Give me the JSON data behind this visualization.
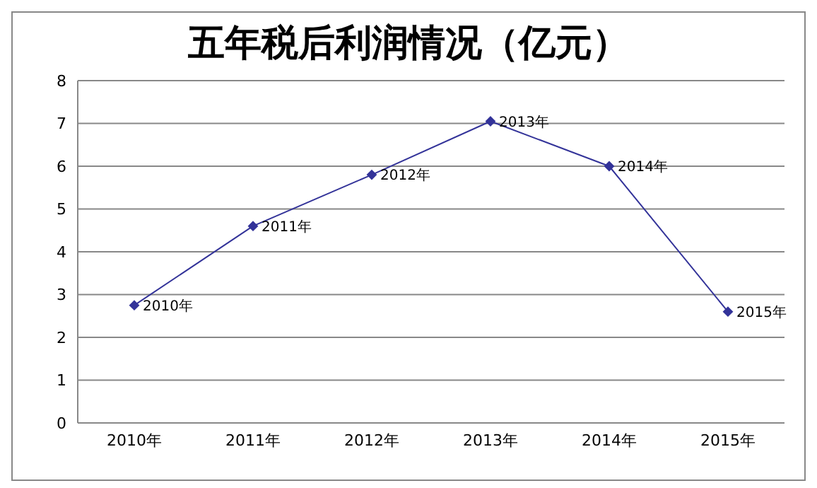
{
  "chart_data": {
    "type": "line",
    "title": "五年税后利润情况（亿元）",
    "categories": [
      "2010年",
      "2011年",
      "2012年",
      "2013年",
      "2014年",
      "2015年"
    ],
    "series": [
      {
        "color": "#333399",
        "values": [
          2.75,
          4.6,
          5.8,
          7.05,
          6.0,
          2.6
        ]
      }
    ],
    "ylim": [
      0,
      8
    ],
    "yticks": [
      0,
      1,
      2,
      3,
      4,
      5,
      6,
      7,
      8
    ],
    "grid": "y",
    "marker": "diamond",
    "line_style": "solid",
    "annotations": [
      {
        "text": "2010年",
        "x": "2010年",
        "y": 2.75
      },
      {
        "text": "2011年",
        "x": "2011年",
        "y": 4.6
      },
      {
        "text": "2012年",
        "x": "2012年",
        "y": 5.8
      },
      {
        "text": "2013年",
        "x": "2013年",
        "y": 7.05
      },
      {
        "text": "2014年",
        "x": "2014年",
        "y": 6.0
      },
      {
        "text": "2015年",
        "x": "2015年",
        "y": 2.6
      }
    ]
  }
}
